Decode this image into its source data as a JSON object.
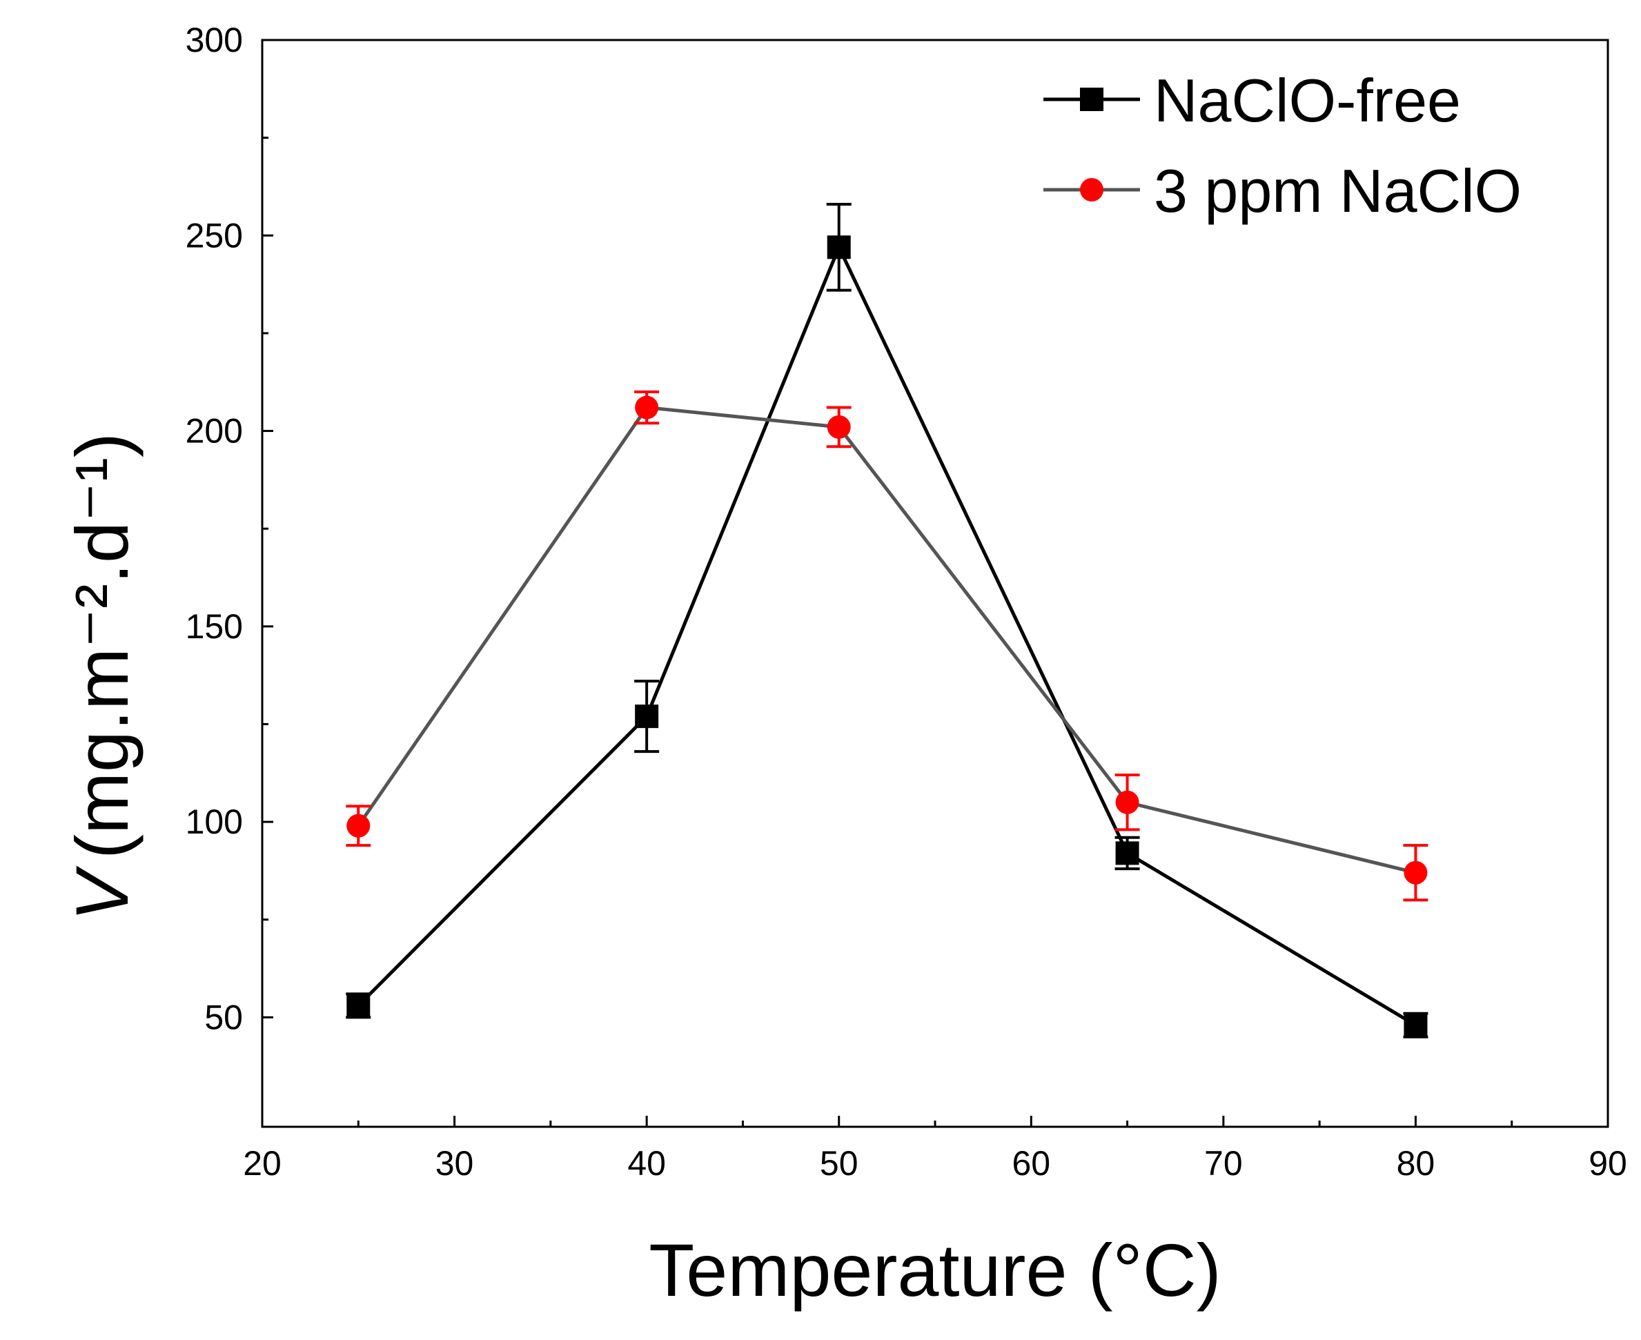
{
  "chart_data": {
    "type": "line",
    "title": "",
    "xlabel": "Temperature (°C)",
    "ylabel_main": "V",
    "ylabel_unit": "(mg.m⁻².d⁻¹)",
    "xlim": [
      20,
      90
    ],
    "ylim": [
      22,
      300
    ],
    "xticks": [
      20,
      30,
      40,
      50,
      60,
      70,
      80,
      90
    ],
    "yticks": [
      50,
      100,
      150,
      200,
      250,
      300
    ],
    "grid": false,
    "legend_position": "top-right",
    "series": [
      {
        "name": "NaClO-free",
        "marker": "square",
        "line_color": "#000000",
        "marker_color": "#000000",
        "errbar_color": "#000000",
        "x": [
          25,
          40,
          50,
          65,
          80
        ],
        "y": [
          53,
          127,
          247,
          92,
          48
        ],
        "err": [
          3,
          9,
          11,
          4,
          3
        ]
      },
      {
        "name": "3 ppm NaClO",
        "marker": "circle",
        "line_color": "#555555",
        "marker_color": "#ff0000",
        "errbar_color": "#ff0000",
        "x": [
          25,
          40,
          50,
          65,
          80
        ],
        "y": [
          99,
          206,
          201,
          105,
          87
        ],
        "err": [
          5,
          4,
          5,
          7,
          7
        ]
      }
    ]
  }
}
